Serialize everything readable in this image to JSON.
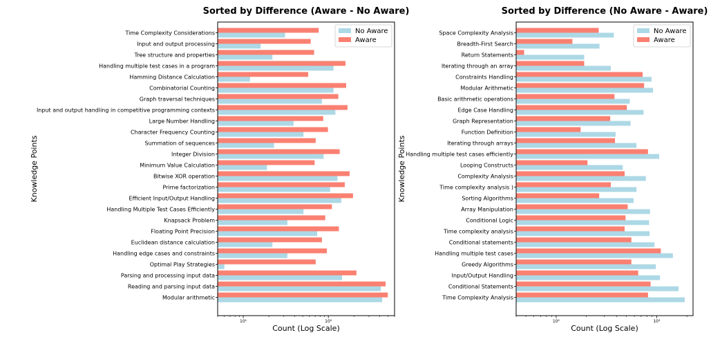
{
  "colors": {
    "no_aware": "#add8e6",
    "aware": "#fa8072"
  },
  "chart_data": [
    {
      "type": "bar",
      "orientation": "horizontal",
      "title": "Sorted by Difference (Aware - No Aware)",
      "xlabel": "Count (Log Scale)",
      "ylabel": "Knowledge Points",
      "xscale": "log",
      "xlim": [
        5,
        600
      ],
      "xticks": [
        10,
        100
      ],
      "xtick_labels": [
        "10¹",
        "10²"
      ],
      "legend": {
        "position": "top-right",
        "entries": [
          "No Aware",
          "Aware"
        ]
      },
      "categories": [
        "Time Complexity Considerations",
        "Input and output processing",
        "Tree structure and properties",
        "Handling multiple test cases in a program",
        "Hamming Distance Calculation",
        "Combinatorial Counting",
        "Graph traversal techniques",
        "Input and output handling in competitive programming contexts",
        "Large Number Handling",
        "Character Frequency Counting",
        "Summation of sequences",
        "Integer Division",
        "Minimum Value Calculation",
        "Bitwise XOR operation",
        "Prime factorization",
        "Efficient Input/Output Handling",
        "Handling Multiple Test Cases Efficiently",
        "Knapsack Problem",
        "Floating Point Precision",
        "Euclidean distance calculation",
        "Handling edge cases and constraints",
        "Optimal Play Strategies",
        "Parsing and processing input data",
        "Reading and parsing input data",
        "Modular arithmetic"
      ],
      "series": [
        {
          "name": "No Aware",
          "values": [
            31,
            16,
            22,
            115,
            12,
            115,
            84,
            121,
            39,
            51,
            23,
            88,
            19,
            128,
            105,
            142,
            51,
            33,
            74,
            22,
            33,
            6,
            145,
            413,
            430
          ]
        },
        {
          "name": "Aware",
          "values": [
            77,
            62,
            68,
            159,
            58,
            162,
            131,
            168,
            87,
            99,
            71,
            136,
            69,
            178,
            156,
            195,
            110,
            92,
            133,
            84,
            96,
            71,
            214,
            471,
            500
          ]
        }
      ]
    },
    {
      "type": "bar",
      "orientation": "horizontal",
      "title": "Sorted by Difference (No Aware - Aware)",
      "xlabel": "Count (Log Scale)",
      "ylabel": "Knowledge Points",
      "xscale": "log",
      "xlim": [
        40,
        2300
      ],
      "xticks": [
        100,
        1000
      ],
      "xtick_labels": [
        "10²",
        "10³"
      ],
      "legend": {
        "position": "top-right",
        "entries": [
          "No Aware",
          "Aware"
        ]
      },
      "categories": [
        "Space Complexity Analysis",
        "Breadth-First Search",
        "Return Statements",
        "Iterating through an array",
        "Constraints Handling",
        "Modular Arithmetic",
        "Basic arithmetic operations",
        "Edge Case Handling",
        "Graph Representation",
        "Function Definition",
        "Iterating through arrays",
        "Handling multiple test cases efficiently",
        "Looping Constructs",
        "Complexity Analysis",
        "Time complexity analysis )",
        "Sorting Algorithms",
        "Array Manipulation",
        "Conditional Logic",
        "Time complexity analysis",
        "Conditional statements",
        "Handling multiple test cases",
        "Greedy Algorithms",
        "Input/Output Handling",
        "Conditional Statements",
        "Time Complexity Analysis"
      ],
      "series": [
        {
          "name": "No Aware",
          "values": [
            375,
            270,
            190,
            350,
            890,
            920,
            540,
            740,
            550,
            390,
            630,
            1060,
            460,
            780,
            630,
            590,
            860,
            840,
            850,
            950,
            1450,
            980,
            1080,
            1650,
            1900
          ]
        },
        {
          "name": "Aware",
          "values": [
            265,
            145,
            48,
            190,
            725,
            750,
            380,
            505,
            345,
            175,
            385,
            820,
            205,
            480,
            350,
            268,
            515,
            490,
            480,
            560,
            1100,
            560,
            655,
            870,
            820
          ]
        }
      ]
    }
  ]
}
